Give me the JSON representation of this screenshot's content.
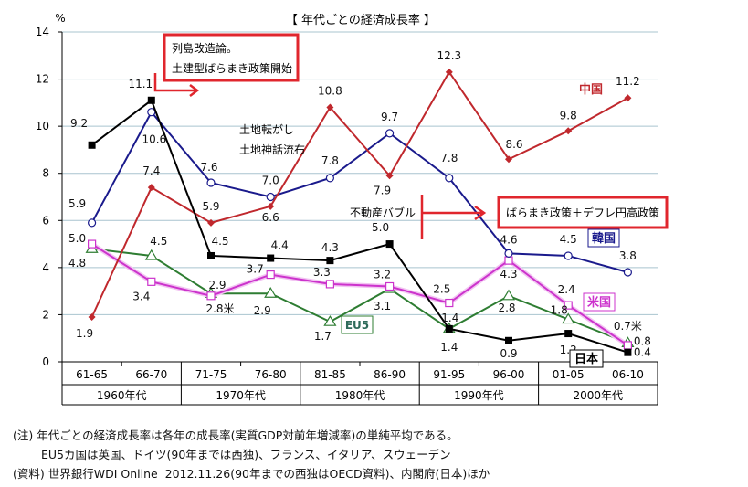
{
  "chart_data": {
    "type": "line",
    "title": "【 年代ごとの経済成長率 】",
    "ylabel": "%",
    "ylim": [
      0,
      14
    ],
    "yticks": [
      "0",
      "2",
      "4",
      "6",
      "8",
      "10",
      "12",
      "14"
    ],
    "grid": true,
    "categories": [
      "61-65",
      "66-70",
      "71-75",
      "76-80",
      "81-85",
      "86-90",
      "91-95",
      "96-00",
      "01-05",
      "06-10"
    ],
    "decades": [
      "1960年代",
      "1970年代",
      "1980年代",
      "1990年代",
      "2000年代"
    ],
    "series": [
      {
        "name": "日本",
        "color": "#000000",
        "marker": "square-filled",
        "values": [
          9.2,
          11.1,
          4.5,
          4.4,
          4.3,
          5.0,
          1.4,
          0.9,
          1.2,
          0.4
        ],
        "labels": [
          "9.2",
          "11.1",
          "4.5",
          "4.4",
          "4.3",
          "5.0",
          "1.4",
          "0.9",
          "1.2",
          "0.4"
        ]
      },
      {
        "name": "中国",
        "color": "#c0282d",
        "marker": "diamond",
        "values": [
          1.9,
          7.4,
          5.9,
          6.6,
          10.8,
          7.9,
          12.3,
          8.6,
          9.8,
          11.2
        ],
        "labels": [
          "1.9",
          "7.4",
          "5.9",
          "6.6",
          "10.8",
          "7.9",
          "12.3",
          "8.6",
          "9.8",
          "11.2"
        ]
      },
      {
        "name": "韓国",
        "color": "#1a1a8c",
        "marker": "circle-open",
        "values": [
          5.9,
          10.6,
          7.6,
          7.0,
          7.8,
          9.7,
          7.8,
          4.6,
          4.5,
          3.8
        ],
        "labels": [
          "5.9",
          "10.6",
          "7.6",
          "7.0",
          "7.8",
          "9.7",
          "7.8",
          "4.6",
          "4.5",
          "3.8"
        ]
      },
      {
        "name": "米国",
        "color": "#cc33cc",
        "marker": "square-open",
        "values": [
          5.0,
          3.4,
          2.8,
          3.7,
          3.3,
          3.2,
          2.5,
          4.3,
          2.4,
          0.7
        ],
        "labels": [
          "5.0",
          "3.4",
          "2.8米",
          "3.7",
          "3.3",
          "3.2",
          "2.5",
          "4.3",
          "2.4",
          "0.7米"
        ]
      },
      {
        "name": "EU5",
        "color": "#2e7d32",
        "marker": "triangle-open",
        "values": [
          4.8,
          4.5,
          2.9,
          2.9,
          1.7,
          3.1,
          1.4,
          2.8,
          1.8,
          0.8
        ],
        "labels": [
          "4.8",
          "4.5",
          "2.9",
          "2.9",
          "1.7",
          "3.1",
          "1.4",
          "2.8",
          "1.8",
          "0.8"
        ]
      }
    ],
    "annotations": {
      "box1_line1": "列島改造論。",
      "box1_line2": "土建型ばらまき政策開始",
      "land1": "土地転がし",
      "land2": "土地神話流布",
      "bubble": "不動産バブル",
      "box2": "ばらまき政策＋デフレ円高政策"
    }
  },
  "notes": {
    "line1": "(注) 年代ごとの経済成長率は各年の成長率(実質GDP対前年増減率)の単純平均である。",
    "line2": "EU5カ国は英国、ドイツ(90年までは西独)、フランス、イタリア、スウェーデン",
    "line3": "(資料) 世界銀行WDI Online  2012.11.26(90年までの西独はOECD資料)、内閣府(日本)ほか"
  }
}
